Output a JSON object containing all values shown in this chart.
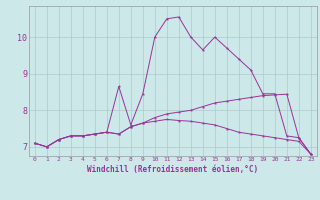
{
  "xlabel": "Windchill (Refroidissement éolien,°C)",
  "xlim": [
    -0.5,
    23.5
  ],
  "ylim": [
    6.75,
    10.85
  ],
  "xticks": [
    0,
    1,
    2,
    3,
    4,
    5,
    6,
    7,
    8,
    9,
    10,
    11,
    12,
    13,
    14,
    15,
    16,
    17,
    18,
    19,
    20,
    21,
    22,
    23
  ],
  "yticks": [
    7,
    8,
    9,
    10
  ],
  "background_color": "#cce8e8",
  "grid_color": "#aacccc",
  "line_color": "#993399",
  "line1_y": [
    7.1,
    7.0,
    7.2,
    7.3,
    7.3,
    7.35,
    7.4,
    8.65,
    7.6,
    8.45,
    10.0,
    10.5,
    10.55,
    10.0,
    9.65,
    10.0,
    9.7,
    9.4,
    9.1,
    8.45,
    8.45,
    7.3,
    7.25,
    6.8
  ],
  "line2_y": [
    7.1,
    7.0,
    7.2,
    7.3,
    7.3,
    7.35,
    7.4,
    7.35,
    7.55,
    7.65,
    7.8,
    7.9,
    7.95,
    8.0,
    8.1,
    8.2,
    8.25,
    8.3,
    8.35,
    8.4,
    8.42,
    8.44,
    7.25,
    6.8
  ],
  "line3_y": [
    7.1,
    7.0,
    7.2,
    7.3,
    7.3,
    7.35,
    7.4,
    7.35,
    7.55,
    7.65,
    7.7,
    7.75,
    7.72,
    7.7,
    7.65,
    7.6,
    7.5,
    7.4,
    7.35,
    7.3,
    7.25,
    7.2,
    7.15,
    6.8
  ]
}
